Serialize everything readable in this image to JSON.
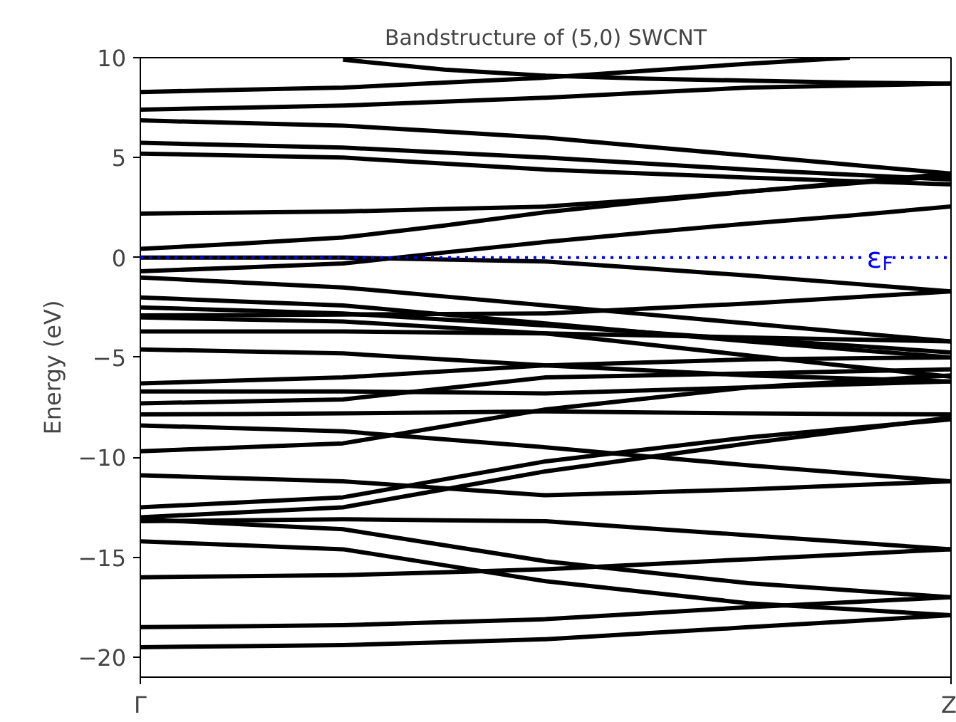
{
  "chart_data": {
    "type": "line",
    "title": "Bandstructure of (5,0) SWCNT",
    "ylabel": "Energy (eV)",
    "categories": [
      "Γ",
      null,
      null,
      null,
      null,
      null,
      null,
      null,
      "Z"
    ],
    "ylim": [
      -21,
      10
    ],
    "yticks": [
      {
        "value": -20,
        "label": "−20"
      },
      {
        "value": -15,
        "label": "−15"
      },
      {
        "value": -10,
        "label": "−10"
      },
      {
        "value": -5,
        "label": "−5"
      },
      0,
      5,
      10
    ],
    "grid": false,
    "marker": "none",
    "line_style": "solid",
    "ref_lines": [
      {
        "axis": "y",
        "value": 0,
        "label": "ε$_{F}$",
        "color": "#0000ff",
        "line_style": "dotted"
      }
    ],
    "series": [
      {
        "color": "#000000",
        "values": [
          8.28,
          8.4,
          8.5,
          8.75,
          9.0,
          9.35,
          9.7,
          10.0,
          null
        ]
      },
      {
        "color": "#000000",
        "values": [
          7.4,
          7.5,
          7.6,
          7.8,
          8.0,
          8.25,
          8.5,
          8.6,
          8.7
        ]
      },
      {
        "color": "#000000",
        "values": [
          null,
          null,
          9.9,
          9.4,
          9.1,
          8.95,
          8.85,
          8.75,
          8.7
        ]
      },
      {
        "color": "#000000",
        "values": [
          6.86,
          6.73,
          6.6,
          6.3,
          6.0,
          5.55,
          5.1,
          4.65,
          4.2
        ]
      },
      {
        "color": "#000000",
        "values": [
          5.74,
          5.62,
          5.5,
          5.25,
          5.0,
          4.7,
          4.4,
          4.15,
          3.9
        ]
      },
      {
        "color": "#000000",
        "values": [
          5.2,
          5.1,
          5.0,
          4.7,
          4.4,
          4.2,
          4.0,
          3.83,
          3.66
        ]
      },
      {
        "color": "#000000",
        "values": [
          2.2,
          2.25,
          2.3,
          2.43,
          2.55,
          2.9,
          3.3,
          3.75,
          4.2
        ]
      },
      {
        "color": "#000000",
        "values": [
          0.43,
          0.7,
          1.0,
          1.6,
          2.27,
          2.8,
          3.3,
          3.7,
          4.1
        ]
      },
      {
        "color": "#000000",
        "values": [
          0,
          0,
          0,
          -0.1,
          -0.2,
          -0.55,
          -0.9,
          -1.3,
          -1.7
        ]
      },
      {
        "color": "#000000",
        "values": [
          -0.69,
          -0.5,
          -0.3,
          0.25,
          0.78,
          1.25,
          1.7,
          2.1,
          2.55
        ]
      },
      {
        "color": "#000000",
        "values": [
          -1.0,
          -1.25,
          -1.5,
          -1.95,
          -2.4,
          -2.85,
          -3.3,
          -3.75,
          -4.2
        ]
      },
      {
        "color": "#000000",
        "values": [
          -2.0,
          -2.2,
          -2.4,
          -2.85,
          -3.3,
          -3.75,
          -4.2,
          -4.6,
          -5.0
        ]
      },
      {
        "color": "#000000",
        "values": [
          -2.5,
          -2.65,
          -2.8,
          -3.1,
          -3.4,
          -3.75,
          -4.1,
          -4.4,
          -4.75
        ]
      },
      {
        "color": "#000000",
        "values": [
          -2.9,
          -2.88,
          -2.85,
          -2.83,
          -2.8,
          -2.55,
          -2.3,
          -2.0,
          -1.7
        ]
      },
      {
        "color": "#000000",
        "values": [
          -3.0,
          -3.1,
          -3.2,
          -3.5,
          -3.8,
          -4.35,
          -4.9,
          -5.45,
          -5.96
        ]
      },
      {
        "color": "#000000",
        "values": [
          -3.7,
          -3.7,
          -3.7,
          -3.75,
          -3.8,
          -3.9,
          -4.0,
          -4.1,
          -4.2
        ]
      },
      {
        "color": "#000000",
        "values": [
          -4.6,
          -4.7,
          -4.8,
          -5.1,
          -5.4,
          -5.65,
          -5.9,
          -6.05,
          -6.2
        ]
      },
      {
        "color": "#000000",
        "values": [
          -6.3,
          -6.15,
          -6.0,
          -5.7,
          -5.4,
          -5.25,
          -5.1,
          -5.05,
          -5.0
        ]
      },
      {
        "color": "#000000",
        "values": [
          -6.7,
          -6.7,
          -6.7,
          -6.75,
          -6.8,
          -6.65,
          -6.5,
          -6.35,
          -6.2
        ]
      },
      {
        "color": "#000000",
        "values": [
          -7.3,
          -7.2,
          -7.1,
          -6.55,
          -6.0,
          -5.9,
          -5.8,
          -5.7,
          -5.6
        ]
      },
      {
        "color": "#000000",
        "values": [
          -7.85,
          -7.83,
          -7.8,
          -7.75,
          -7.7,
          -7.75,
          -7.8,
          -7.83,
          -7.85
        ]
      },
      {
        "color": "#000000",
        "values": [
          -8.4,
          -8.55,
          -8.7,
          -9.1,
          -9.5,
          -9.95,
          -10.4,
          -10.8,
          -11.2
        ]
      },
      {
        "color": "#000000",
        "values": [
          -9.7,
          -9.5,
          -9.3,
          -8.45,
          -7.6,
          -7.05,
          -6.5,
          -6.2,
          -5.9
        ]
      },
      {
        "color": "#000000",
        "values": [
          -10.9,
          -11.05,
          -11.2,
          -11.55,
          -11.9,
          -11.75,
          -11.6,
          -11.4,
          -11.2
        ]
      },
      {
        "color": "#000000",
        "values": [
          -12.5,
          -12.25,
          -12.0,
          -11.1,
          -10.2,
          -9.6,
          -9.0,
          -8.55,
          -8.1
        ]
      },
      {
        "color": "#000000",
        "values": [
          -13.0,
          -12.75,
          -12.5,
          -11.6,
          -10.7,
          -10.0,
          -9.3,
          -8.65,
          -8.0
        ]
      },
      {
        "color": "#000000",
        "values": [
          -13.2,
          -13.15,
          -13.1,
          -13.15,
          -13.2,
          -13.55,
          -13.9,
          -14.25,
          -14.6
        ]
      },
      {
        "color": "#000000",
        "values": [
          -13.1,
          -13.35,
          -13.6,
          -14.4,
          -15.2,
          -15.75,
          -16.3,
          -16.65,
          -17.0
        ]
      },
      {
        "color": "#000000",
        "values": [
          -14.2,
          -14.4,
          -14.6,
          -15.4,
          -16.2,
          -16.75,
          -17.3,
          -17.6,
          -17.9
        ]
      },
      {
        "color": "#000000",
        "values": [
          -16.0,
          -15.95,
          -15.9,
          -15.75,
          -15.6,
          -15.35,
          -15.1,
          -14.85,
          -14.6
        ]
      },
      {
        "color": "#000000",
        "values": [
          -18.5,
          -18.45,
          -18.4,
          -18.25,
          -18.1,
          -17.8,
          -17.5,
          -17.25,
          -17.0
        ]
      },
      {
        "color": "#000000",
        "values": [
          -19.5,
          -19.45,
          -19.4,
          -19.25,
          -19.1,
          -18.8,
          -18.5,
          -18.2,
          -17.9
        ]
      }
    ]
  }
}
